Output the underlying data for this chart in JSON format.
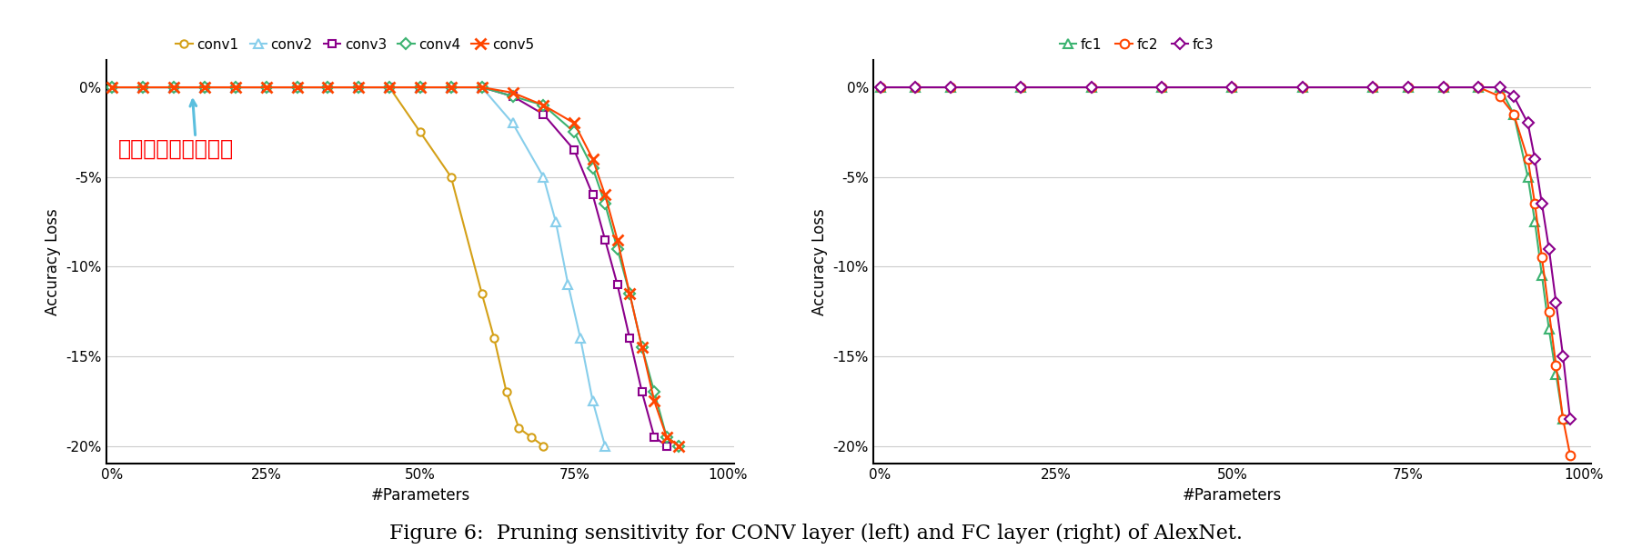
{
  "conv_series": {
    "conv1": {
      "color": "#D4A017",
      "marker": "o",
      "x": [
        0.0,
        0.05,
        0.1,
        0.15,
        0.2,
        0.25,
        0.3,
        0.35,
        0.4,
        0.45,
        0.5,
        0.55,
        0.6,
        0.62,
        0.64,
        0.66,
        0.68,
        0.7
      ],
      "y": [
        0.0,
        0.0,
        0.0,
        0.0,
        0.0,
        0.0,
        0.0,
        0.0,
        0.0,
        0.0,
        -2.5,
        -5.0,
        -11.5,
        -14.0,
        -17.0,
        -19.0,
        -19.5,
        -20.0
      ]
    },
    "conv2": {
      "color": "#87CEEB",
      "marker": "^",
      "x": [
        0.0,
        0.05,
        0.1,
        0.15,
        0.2,
        0.25,
        0.3,
        0.35,
        0.4,
        0.45,
        0.5,
        0.55,
        0.6,
        0.65,
        0.7,
        0.72,
        0.74,
        0.76,
        0.78,
        0.8
      ],
      "y": [
        0.0,
        0.0,
        0.0,
        0.0,
        0.0,
        0.0,
        0.0,
        0.0,
        0.0,
        0.0,
        0.0,
        0.0,
        0.0,
        -2.0,
        -5.0,
        -7.5,
        -11.0,
        -14.0,
        -17.5,
        -20.0
      ]
    },
    "conv3": {
      "color": "#8B008B",
      "marker": "s",
      "x": [
        0.0,
        0.05,
        0.1,
        0.15,
        0.2,
        0.25,
        0.3,
        0.35,
        0.4,
        0.45,
        0.5,
        0.55,
        0.6,
        0.65,
        0.7,
        0.75,
        0.78,
        0.8,
        0.82,
        0.84,
        0.86,
        0.88,
        0.9
      ],
      "y": [
        0.0,
        0.0,
        0.0,
        0.0,
        0.0,
        0.0,
        0.0,
        0.0,
        0.0,
        0.0,
        0.0,
        0.0,
        0.0,
        -0.5,
        -1.5,
        -3.5,
        -6.0,
        -8.5,
        -11.0,
        -14.0,
        -17.0,
        -19.5,
        -20.0
      ]
    },
    "conv4": {
      "color": "#3CB371",
      "marker": "D",
      "x": [
        0.0,
        0.05,
        0.1,
        0.15,
        0.2,
        0.25,
        0.3,
        0.35,
        0.4,
        0.45,
        0.5,
        0.55,
        0.6,
        0.65,
        0.7,
        0.75,
        0.78,
        0.8,
        0.82,
        0.84,
        0.86,
        0.88,
        0.9,
        0.92
      ],
      "y": [
        0.0,
        0.0,
        0.0,
        0.0,
        0.0,
        0.0,
        0.0,
        0.0,
        0.0,
        0.0,
        0.0,
        0.0,
        0.0,
        -0.5,
        -1.0,
        -2.5,
        -4.5,
        -6.5,
        -9.0,
        -11.5,
        -14.5,
        -17.0,
        -19.5,
        -20.0
      ]
    },
    "conv5": {
      "color": "#FF4500",
      "marker": "x",
      "x": [
        0.0,
        0.05,
        0.1,
        0.15,
        0.2,
        0.25,
        0.3,
        0.35,
        0.4,
        0.45,
        0.5,
        0.55,
        0.6,
        0.65,
        0.7,
        0.75,
        0.78,
        0.8,
        0.82,
        0.84,
        0.86,
        0.88,
        0.9,
        0.92
      ],
      "y": [
        0.0,
        0.0,
        0.0,
        0.0,
        0.0,
        0.0,
        0.0,
        0.0,
        0.0,
        0.0,
        0.0,
        0.0,
        0.0,
        -0.3,
        -1.0,
        -2.0,
        -4.0,
        -6.0,
        -8.5,
        -11.5,
        -14.5,
        -17.5,
        -19.5,
        -20.0
      ]
    }
  },
  "fc_series": {
    "fc1": {
      "color": "#3CB371",
      "marker": "^",
      "x": [
        0.0,
        0.05,
        0.1,
        0.2,
        0.3,
        0.4,
        0.5,
        0.6,
        0.7,
        0.75,
        0.8,
        0.85,
        0.88,
        0.9,
        0.92,
        0.93,
        0.94,
        0.95,
        0.96,
        0.97
      ],
      "y": [
        0.0,
        0.0,
        0.0,
        0.0,
        0.0,
        0.0,
        0.0,
        0.0,
        0.0,
        0.0,
        0.0,
        0.0,
        0.0,
        -1.5,
        -5.0,
        -7.5,
        -10.5,
        -13.5,
        -16.0,
        -18.5
      ]
    },
    "fc2": {
      "color": "#FF4500",
      "marker": "o",
      "x": [
        0.0,
        0.05,
        0.1,
        0.2,
        0.3,
        0.4,
        0.5,
        0.6,
        0.7,
        0.75,
        0.8,
        0.85,
        0.88,
        0.9,
        0.92,
        0.93,
        0.94,
        0.95,
        0.96,
        0.97,
        0.98
      ],
      "y": [
        0.0,
        0.0,
        0.0,
        0.0,
        0.0,
        0.0,
        0.0,
        0.0,
        0.0,
        0.0,
        0.0,
        0.0,
        -0.5,
        -1.5,
        -4.0,
        -6.5,
        -9.5,
        -12.5,
        -15.5,
        -18.5,
        -20.5
      ]
    },
    "fc3": {
      "color": "#8B008B",
      "marker": "D",
      "x": [
        0.0,
        0.05,
        0.1,
        0.2,
        0.3,
        0.4,
        0.5,
        0.6,
        0.7,
        0.75,
        0.8,
        0.85,
        0.88,
        0.9,
        0.92,
        0.93,
        0.94,
        0.95,
        0.96,
        0.97,
        0.98
      ],
      "y": [
        0.0,
        0.0,
        0.0,
        0.0,
        0.0,
        0.0,
        0.0,
        0.0,
        0.0,
        0.0,
        0.0,
        0.0,
        0.0,
        -0.5,
        -2.0,
        -4.0,
        -6.5,
        -9.0,
        -12.0,
        -15.0,
        -18.5
      ]
    }
  },
  "annotation_text": "模型的第一个卷积层",
  "annotation_color": "#FF0000",
  "arrow_color": "#5BBFDE",
  "xlabel": "#Parameters",
  "ylabel": "Accuracy Loss",
  "ylim": [
    -20,
    0
  ],
  "xlim": [
    0,
    1.0
  ],
  "yticks": [
    0,
    -5,
    -10,
    -15,
    -20
  ],
  "xticks": [
    0,
    0.25,
    0.5,
    0.75,
    1.0
  ],
  "caption": "Figure 6:  Pruning sensitivity for CONV layer (left) and FC layer (right) of AlexNet.",
  "caption_fontsize": 16,
  "background_color": "#ffffff"
}
